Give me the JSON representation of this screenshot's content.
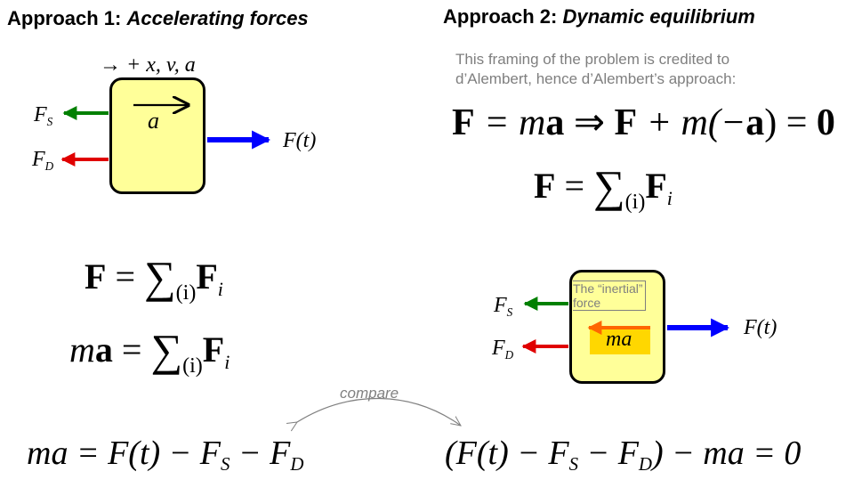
{
  "left": {
    "heading_prefix": "Approach 1: ",
    "heading_title": "Accelerating forces",
    "direction_label": "→ + x, v, a",
    "box_accel_label": "a",
    "force_labels": {
      "fs_main": "F",
      "fs_sub": "S",
      "fd_main": "F",
      "fd_sub": "D",
      "ft": "F(t)"
    },
    "eq1": {
      "lhs": "F",
      "sum_index": "(i)",
      "term": "F",
      "term_sub": "i"
    },
    "eq2": {
      "lhs_m": "m",
      "lhs_a": "a",
      "sum_index": "(i)",
      "term": "F",
      "term_sub": "i"
    },
    "final_eq": {
      "lhs": "ma = F(t) − F",
      "s_sub": "S",
      "mid": " − F",
      "d_sub": "D"
    }
  },
  "right": {
    "heading_prefix": "Approach 2: ",
    "heading_title": "Dynamic equilibrium",
    "note_line1": "This framing of the problem is credited to",
    "note_line2": "d’Alembert, hence d’Alembert’s approach:",
    "eq_a": {
      "part1": "F",
      "part2": " = m",
      "part3": "a",
      "arrow": " ⇒ ",
      "part4": "F",
      "part5": " + m(−",
      "part6": "a",
      "part7": ") = ",
      "part8": "0"
    },
    "eq_b": {
      "lhs": "F",
      "sum_index": "(i)",
      "term": "F",
      "term_sub": "i"
    },
    "box_label_line1": "The “inertial”",
    "box_label_line2": "force",
    "box_ma": "ma",
    "force_labels": {
      "fs_main": "F",
      "fs_sub": "S",
      "fd_main": "F",
      "fd_sub": "D",
      "ft": "F(t)"
    },
    "final_eq": {
      "open": "(F(t) − F",
      "s_sub": "S",
      "mid": " − F",
      "d_sub": "D",
      "close": ") − ma = 0"
    }
  },
  "compare_label": "compare",
  "colors": {
    "green": "#008000",
    "red": "#e00000",
    "blue": "#0000ff",
    "orange": "#ff6600",
    "box_fill": "#ffff99",
    "ma_highlight": "#ffd700",
    "gray": "#808080"
  }
}
